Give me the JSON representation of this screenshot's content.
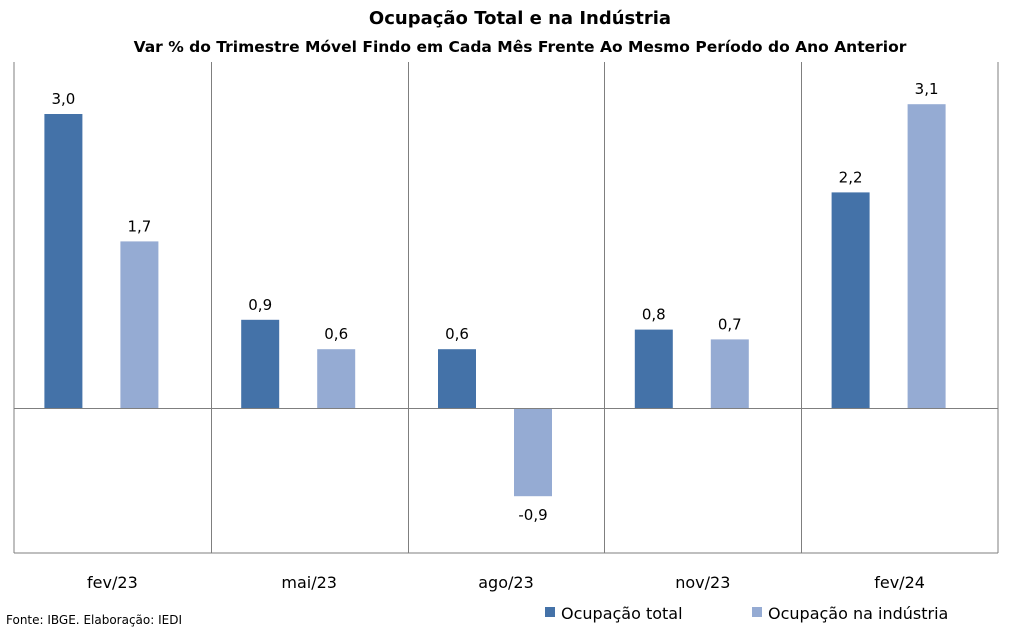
{
  "chart_data": {
    "type": "bar",
    "title": "Ocupação Total e na Indústria",
    "subtitle": "Var % do Trimestre Móvel Findo em Cada Mês Frente Ao Mesmo Período do Ano Anterior",
    "categories": [
      "fev/23",
      "mai/23",
      "ago/23",
      "nov/23",
      "fev/24"
    ],
    "series": [
      {
        "name": "Ocupação total",
        "color": "#4472a8",
        "values": [
          3.0,
          0.9,
          0.6,
          0.8,
          2.2
        ],
        "labels": [
          "3,0",
          "0,9",
          "0,6",
          "0,8",
          "2,2"
        ]
      },
      {
        "name": "Ocupação na indústria",
        "color": "#95abd3",
        "values": [
          1.7,
          0.6,
          -0.9,
          0.7,
          3.1
        ],
        "labels": [
          "1,7",
          "0,6",
          "-0,9",
          "0,7",
          "3,1"
        ]
      }
    ],
    "ylim": [
      -1.5,
      3.5
    ],
    "grid": false,
    "category_separators": true,
    "legend_position": "bottom-right",
    "source": "Fonte: IBGE. Elaboração: IEDI"
  }
}
